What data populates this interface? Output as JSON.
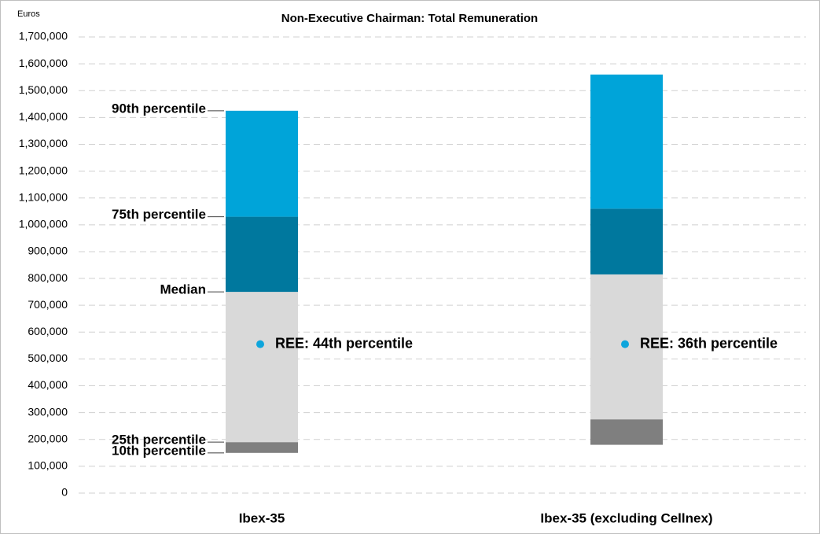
{
  "chart_data": {
    "type": "box",
    "title": "Non-Executive Chairman: Total Remuneration",
    "ylabel": "Euros",
    "categories": [
      "Ibex-35",
      "Ibex-35 (excluding Cellnex)"
    ],
    "ylim": [
      0,
      1700000
    ],
    "yticks": [
      0,
      {
        "value": 100000,
        "label": "100,000"
      },
      {
        "value": 200000,
        "label": "200,000"
      },
      {
        "value": 300000,
        "label": "300,000"
      },
      {
        "value": 400000,
        "label": "400,000"
      },
      {
        "value": 500000,
        "label": "500,000"
      },
      {
        "value": 600000,
        "label": "600,000"
      },
      {
        "value": 700000,
        "label": "700,000"
      },
      {
        "value": 800000,
        "label": "800,000"
      },
      {
        "value": 900000,
        "label": "900,000"
      },
      {
        "value": 1000000,
        "label": "1,000,000"
      },
      {
        "value": 1100000,
        "label": "1,100,000"
      },
      {
        "value": 1200000,
        "label": "1,200,000"
      },
      {
        "value": 1300000,
        "label": "1,300,000"
      },
      {
        "value": 1400000,
        "label": "1,400,000"
      },
      {
        "value": 1500000,
        "label": "1,500,000"
      },
      {
        "value": 1600000,
        "label": "1,600,000"
      },
      {
        "value": 1700000,
        "label": "1,700,000"
      }
    ],
    "grid": true,
    "percentiles": [
      {
        "name": "10th percentile",
        "values": [
          150000,
          180000
        ]
      },
      {
        "name": "25th percentile",
        "values": [
          190000,
          275000
        ]
      },
      {
        "name": "Median",
        "values": [
          750000,
          815000
        ]
      },
      {
        "name": "75th percentile",
        "values": [
          1030000,
          1060000
        ]
      },
      {
        "name": "90th percentile",
        "values": [
          1425000,
          1560000
        ]
      }
    ],
    "band_colors": [
      "#7f7f7f",
      "#d9d9d9",
      "#00789e",
      "#00a4d9"
    ],
    "markers": {
      "color": "#0ea5dc",
      "values": [
        555000,
        555000
      ],
      "labels": [
        "REE: 44th percentile",
        "REE: 36th percentile"
      ]
    }
  }
}
